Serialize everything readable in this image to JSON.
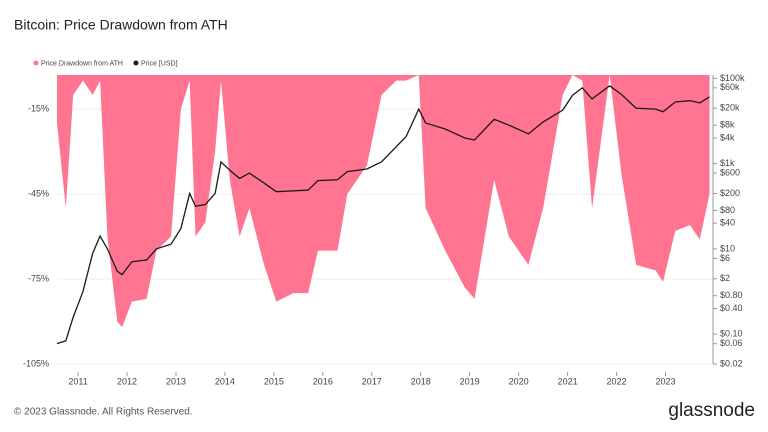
{
  "chart_data": {
    "type": "area",
    "title": "Bitcoin: Price Drawdown from ATH",
    "x": [
      2010.57,
      2010.75,
      2010.9,
      2011.1,
      2011.3,
      2011.45,
      2011.6,
      2011.8,
      2011.9,
      2012.1,
      2012.4,
      2012.6,
      2012.9,
      2013.1,
      2013.28,
      2013.4,
      2013.6,
      2013.8,
      2013.92,
      2014.1,
      2014.3,
      2014.5,
      2014.8,
      2015.05,
      2015.4,
      2015.7,
      2015.9,
      2016.3,
      2016.5,
      2016.9,
      2017.2,
      2017.5,
      2017.7,
      2017.96,
      2018.1,
      2018.5,
      2018.9,
      2019.1,
      2019.5,
      2019.8,
      2020.2,
      2020.5,
      2020.9,
      2021.1,
      2021.3,
      2021.5,
      2021.86,
      2022.1,
      2022.4,
      2022.8,
      2022.95,
      2023.2,
      2023.5,
      2023.7,
      2023.9
    ],
    "series": [
      {
        "name": "Price Drawdown from ATH",
        "color": "#ff7591",
        "values": [
          -20,
          -50,
          -10,
          -5,
          -10,
          -5,
          -60,
          -90,
          -92,
          -83,
          -82,
          -65,
          -60,
          -15,
          -5,
          -60,
          -55,
          -30,
          -5,
          -40,
          -60,
          -50,
          -70,
          -83,
          -80,
          -80,
          -65,
          -65,
          -45,
          -35,
          -10,
          -5,
          -5,
          -3,
          -50,
          -65,
          -78,
          -82,
          -40,
          -60,
          -70,
          -50,
          -10,
          -3,
          -5,
          -50,
          -3,
          -38,
          -70,
          -72,
          -76,
          -58,
          -56,
          -61,
          -45
        ]
      },
      {
        "name": "Price [USD]",
        "color": "#1a1a1a",
        "axis": "y2",
        "values": [
          0.06,
          0.07,
          0.25,
          1,
          8,
          20,
          10,
          3,
          2.5,
          5,
          5.5,
          10,
          13,
          30,
          200,
          100,
          110,
          200,
          1100,
          700,
          450,
          600,
          350,
          220,
          230,
          240,
          400,
          420,
          650,
          750,
          1100,
          2500,
          4300,
          19000,
          9000,
          6500,
          4000,
          3600,
          11000,
          8000,
          5000,
          9500,
          18000,
          40000,
          60000,
          33000,
          67000,
          42000,
          20000,
          19000,
          16500,
          28000,
          30000,
          26500,
          37000
        ]
      }
    ],
    "xlim": [
      2010.57,
      2023.95
    ],
    "xticks": [
      2011,
      2012,
      2013,
      2014,
      2015,
      2016,
      2017,
      2018,
      2019,
      2020,
      2021,
      2022,
      2023
    ],
    "ylim": [
      -105,
      -3
    ],
    "yticks": [
      {
        "value": -15,
        "label": "-15%"
      },
      {
        "value": -45,
        "label": "-45%"
      },
      {
        "value": -75,
        "label": "-75%"
      },
      {
        "value": -105,
        "label": "-105%"
      }
    ],
    "y2lim": [
      0.02,
      120000
    ],
    "y2_log": true,
    "y2ticks": [
      {
        "value": 100000,
        "label": "$100k"
      },
      {
        "value": 60000,
        "label": "$60k"
      },
      {
        "value": 20000,
        "label": "$20k"
      },
      {
        "value": 8000,
        "label": "$8k"
      },
      {
        "value": 4000,
        "label": "$4k"
      },
      {
        "value": 1000,
        "label": "$1k"
      },
      {
        "value": 600,
        "label": "$600"
      },
      {
        "value": 200,
        "label": "$200"
      },
      {
        "value": 80,
        "label": "$80"
      },
      {
        "value": 40,
        "label": "$40"
      },
      {
        "value": 10,
        "label": "$10"
      },
      {
        "value": 6,
        "label": "$6"
      },
      {
        "value": 2,
        "label": "$2"
      },
      {
        "value": 0.8,
        "label": "$0.80"
      },
      {
        "value": 0.4,
        "label": "$0.40"
      },
      {
        "value": 0.1,
        "label": "$0.10"
      },
      {
        "value": 0.06,
        "label": "$0.06"
      },
      {
        "value": 0.02,
        "label": "$0.02"
      }
    ],
    "grid": true,
    "legend": "top-left"
  },
  "footer": {
    "copyright": "© 2023 Glassnode. All Rights Reserved.",
    "logo": "glassnode"
  }
}
